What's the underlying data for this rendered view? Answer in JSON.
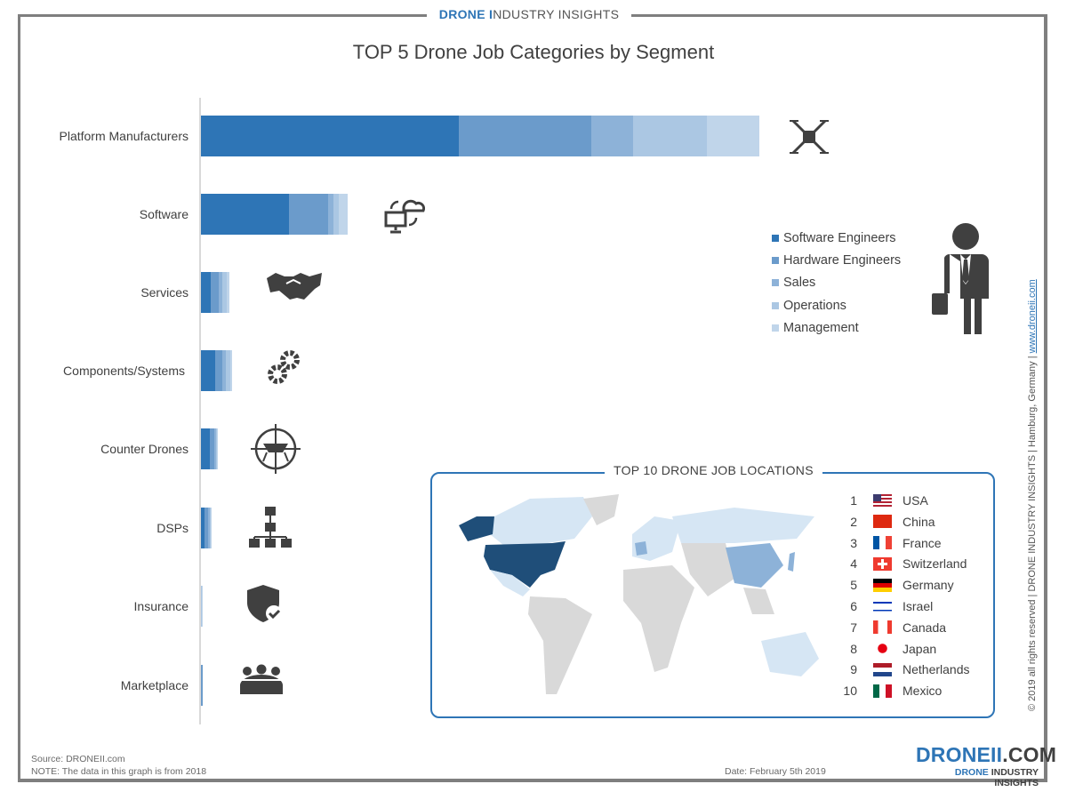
{
  "header": {
    "brand_strong": "DRONE I",
    "brand_rest": "NDUSTRY INSIGHTS"
  },
  "chart_data": {
    "type": "bar",
    "orientation": "horizontal",
    "stacked": true,
    "title": "TOP 5 Drone Job Categories by Segment",
    "categories": [
      "Platform Manufacturers",
      "Software",
      "Services",
      "Components/Systems",
      "Counter Drones",
      "DSPs",
      "Insurance",
      "Marketplace"
    ],
    "series": [
      {
        "name": "Software Engineers",
        "color": "#2e75b6",
        "values": [
          290,
          99,
          11,
          16,
          10,
          4,
          0,
          0
        ]
      },
      {
        "name": "Hardware Engineers",
        "color": "#6b9bcb",
        "values": [
          149,
          44,
          9,
          8,
          5,
          4,
          0,
          2
        ]
      },
      {
        "name": "Sales",
        "color": "#8db2d8",
        "values": [
          47,
          6,
          4,
          4,
          2,
          2,
          0,
          0
        ]
      },
      {
        "name": "Operations",
        "color": "#abc7e3",
        "values": [
          83,
          6,
          5,
          5,
          1,
          1,
          1,
          0
        ]
      },
      {
        "name": "Management",
        "color": "#c0d5ea",
        "values": [
          59,
          10,
          3,
          2,
          1,
          1,
          1,
          0
        ]
      }
    ],
    "axis_labels_shown": false,
    "grid": false,
    "legend_position": "right"
  },
  "category_icons": [
    "drone-icon",
    "cloud-sync-icon",
    "handshake-icon",
    "gears-icon",
    "crosshair-drone-icon",
    "org-chart-icon",
    "shield-check-icon",
    "group-icon"
  ],
  "map": {
    "title": "TOP 10 DRONE JOB LOCATIONS",
    "locations": [
      {
        "rank": "1",
        "country": "USA"
      },
      {
        "rank": "2",
        "country": "China"
      },
      {
        "rank": "3",
        "country": "France"
      },
      {
        "rank": "4",
        "country": "Switzerland"
      },
      {
        "rank": "5",
        "country": "Germany"
      },
      {
        "rank": "6",
        "country": "Israel"
      },
      {
        "rank": "7",
        "country": "Canada"
      },
      {
        "rank": "8",
        "country": "Japan"
      },
      {
        "rank": "9",
        "country": "Netherlands"
      },
      {
        "rank": "10",
        "country": "Mexico"
      }
    ]
  },
  "side_text": {
    "copyright": "© 2019 all rights reserved | DRONE INDUSTRY INSIGHTS | Hamburg, Germany | ",
    "link": "www.droneii.com"
  },
  "footer": {
    "source": "Source: DRONEII.com",
    "note": "NOTE: The data in this graph is from 2018",
    "date": "Date: February 5th 2019"
  },
  "logo": {
    "main": "DRONEII",
    "tld": ".COM",
    "sub_strong": "DRONE",
    "sub_rest": " INDUSTRY INSIGHTS"
  }
}
